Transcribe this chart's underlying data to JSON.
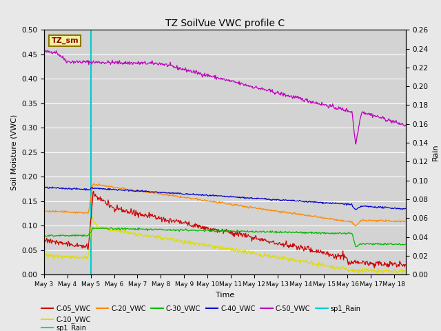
{
  "title": "TZ SoilVue VWC profile C",
  "xlabel": "Time",
  "ylabel_left": "Soil Moisture (VWC)",
  "ylabel_right": "Rain",
  "ylim_left": [
    0.0,
    0.5
  ],
  "ylim_right": [
    0.0,
    0.26
  ],
  "x_tick_labels": [
    "May 3",
    "May 4",
    "May 5",
    "May 6",
    "May 7",
    "May 8",
    "May 9",
    "May 10",
    "May 11",
    "May 12",
    "May 13",
    "May 14",
    "May 15",
    "May 16",
    "May 17",
    "May 18"
  ],
  "legend_label": "TZ_sm",
  "background_color": "#e8e8e8",
  "plot_bg_color": "#d3d3d3",
  "colors": {
    "C05": "#cc0000",
    "C10": "#dddd00",
    "C20": "#ff8800",
    "C30": "#00bb00",
    "C40": "#0000cc",
    "C50": "#bb00bb",
    "rain": "#00cccc"
  },
  "yticks_left": [
    0.0,
    0.05,
    0.1,
    0.15,
    0.2,
    0.25,
    0.3,
    0.35,
    0.4,
    0.45,
    0.5
  ],
  "yticks_right": [
    0.0,
    0.02,
    0.04,
    0.06,
    0.08,
    0.1,
    0.12,
    0.14,
    0.16,
    0.18,
    0.2,
    0.22,
    0.24,
    0.26
  ]
}
